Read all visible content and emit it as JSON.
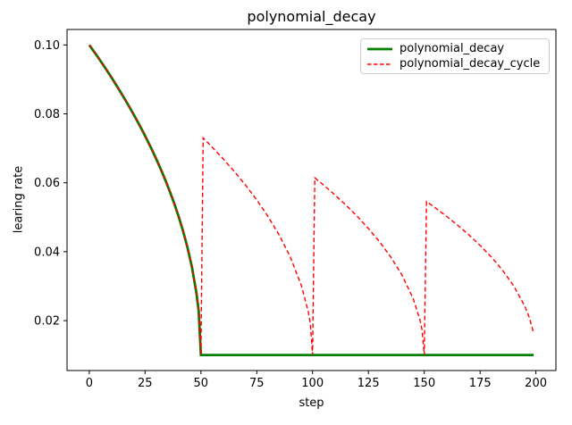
{
  "chart_data": {
    "type": "line",
    "title": "polynomial_decay",
    "xlabel": "step",
    "ylabel": "learing rate",
    "xlim": [
      -9.95,
      208.95
    ],
    "ylim": [
      0.0055,
      0.1045
    ],
    "xtick_values": [
      0,
      25,
      50,
      75,
      100,
      125,
      150,
      175,
      200
    ],
    "xtick_labels": [
      "0",
      "25",
      "50",
      "75",
      "100",
      "125",
      "150",
      "175",
      "200"
    ],
    "ytick_values": [
      0.02,
      0.04,
      0.06,
      0.08,
      0.1
    ],
    "ytick_labels": [
      "0.02",
      "0.04",
      "0.06",
      "0.08",
      "0.10"
    ],
    "grid": false,
    "legend_position": "upper right",
    "axes_color": "#000000",
    "background_color": "#ffffff",
    "series": [
      {
        "name": "polynomial_decay",
        "color": "#008000",
        "style": "solid",
        "line_width": 2.8,
        "dash": "",
        "points": [
          [
            0,
            0.1
          ],
          [
            2,
            0.09818
          ],
          [
            4,
            0.09633
          ],
          [
            6,
            0.09443
          ],
          [
            8,
            0.09249
          ],
          [
            10,
            0.0905
          ],
          [
            12,
            0.08846
          ],
          [
            14,
            0.08637
          ],
          [
            16,
            0.08422
          ],
          [
            18,
            0.082
          ],
          [
            20,
            0.07971
          ],
          [
            22,
            0.07735
          ],
          [
            24,
            0.0749
          ],
          [
            26,
            0.07235
          ],
          [
            28,
            0.0697
          ],
          [
            30,
            0.06692
          ],
          [
            32,
            0.064
          ],
          [
            34,
            0.06091
          ],
          [
            36,
            0.05762
          ],
          [
            38,
            0.05409
          ],
          [
            40,
            0.05025
          ],
          [
            42,
            0.046
          ],
          [
            44,
            0.04118
          ],
          [
            46,
            0.03546
          ],
          [
            48,
            0.028
          ],
          [
            49,
            0.02273
          ],
          [
            50,
            0.01
          ],
          [
            199,
            0.01
          ]
        ]
      },
      {
        "name": "polynomial_decay_cycle",
        "color": "#ff0000",
        "style": "dashed",
        "line_width": 1.4,
        "dash": "5 3",
        "points": [
          [
            0,
            0.1
          ],
          [
            2,
            0.09818
          ],
          [
            4,
            0.09633
          ],
          [
            6,
            0.09443
          ],
          [
            8,
            0.09249
          ],
          [
            10,
            0.0905
          ],
          [
            12,
            0.08846
          ],
          [
            14,
            0.08637
          ],
          [
            16,
            0.08422
          ],
          [
            18,
            0.082
          ],
          [
            20,
            0.07971
          ],
          [
            22,
            0.07735
          ],
          [
            24,
            0.0749
          ],
          [
            26,
            0.07235
          ],
          [
            28,
            0.0697
          ],
          [
            30,
            0.06692
          ],
          [
            32,
            0.064
          ],
          [
            34,
            0.06091
          ],
          [
            36,
            0.05762
          ],
          [
            38,
            0.05409
          ],
          [
            40,
            0.05025
          ],
          [
            42,
            0.046
          ],
          [
            44,
            0.04118
          ],
          [
            46,
            0.03546
          ],
          [
            48,
            0.028
          ],
          [
            49,
            0.02273
          ],
          [
            50,
            0.01
          ],
          [
            51,
            0.073
          ],
          [
            55,
            0.07037
          ],
          [
            60,
            0.06692
          ],
          [
            65,
            0.06324
          ],
          [
            70,
            0.05929
          ],
          [
            75,
            0.055
          ],
          [
            80,
            0.05025
          ],
          [
            85,
            0.04486
          ],
          [
            90,
            0.03846
          ],
          [
            95,
            0.03012
          ],
          [
            98,
            0.02273
          ],
          [
            99,
            0.019
          ],
          [
            100,
            0.01
          ],
          [
            101,
            0.06144
          ],
          [
            105,
            0.05929
          ],
          [
            110,
            0.05648
          ],
          [
            115,
            0.05347
          ],
          [
            120,
            0.05025
          ],
          [
            125,
            0.04674
          ],
          [
            130,
            0.04286
          ],
          [
            135,
            0.03846
          ],
          [
            140,
            0.03324
          ],
          [
            145,
            0.02643
          ],
          [
            148,
            0.02039
          ],
          [
            149,
            0.01735
          ],
          [
            150,
            0.01
          ],
          [
            151,
            0.05455
          ],
          [
            155,
            0.05269
          ],
          [
            160,
            0.05025
          ],
          [
            165,
            0.04765
          ],
          [
            170,
            0.04486
          ],
          [
            175,
            0.04182
          ],
          [
            180,
            0.03846
          ],
          [
            185,
            0.03465
          ],
          [
            190,
            0.03012
          ],
          [
            195,
            0.02423
          ],
          [
            197,
            0.02102
          ],
          [
            199,
            0.01636
          ]
        ]
      }
    ]
  }
}
